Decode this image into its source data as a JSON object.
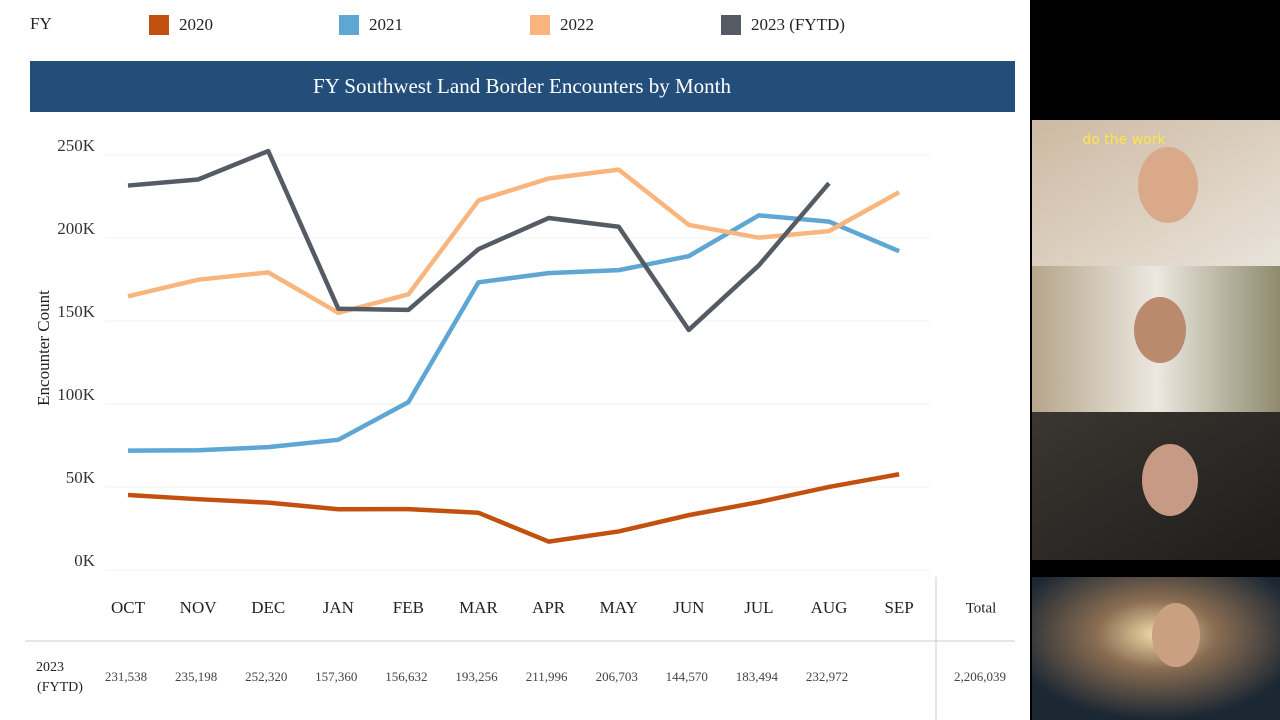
{
  "chart_data": {
    "type": "line",
    "title": "FY Southwest Land Border Encounters by Month",
    "legend_title": "FY",
    "y_label": "Encounter Count",
    "categories": [
      "OCT",
      "NOV",
      "DEC",
      "JAN",
      "FEB",
      "MAR",
      "APR",
      "MAY",
      "JUN",
      "JUL",
      "AUG",
      "SEP"
    ],
    "series": [
      {
        "name": "2020",
        "color": "#c2510f",
        "values": [
          45139,
          42649,
          40565,
          36585,
          36687,
          34460,
          17106,
          23237,
          33049,
          40929,
          50014,
          57674
        ]
      },
      {
        "name": "2021",
        "color": "#5ea6d3",
        "values": [
          71929,
          72113,
          73994,
          78414,
          101099,
          173277,
          178795,
          180597,
          189034,
          213593,
          209840,
          192001
        ]
      },
      {
        "name": "2022",
        "color": "#f8b67e",
        "values": [
          164837,
          174845,
          179253,
          154874,
          166010,
          222574,
          235785,
          241136,
          207834,
          200162,
          204087,
          227547
        ]
      },
      {
        "name": "2023 (FYTD)",
        "color": "#555b64",
        "values": [
          231538,
          235198,
          252320,
          157360,
          156632,
          193256,
          211996,
          206703,
          144570,
          183494,
          232972,
          null
        ]
      }
    ],
    "ylim": [
      0,
      265000
    ],
    "yticks": [
      {
        "value": 0,
        "label": "0K"
      },
      {
        "value": 50000,
        "label": "50K"
      },
      {
        "value": 100000,
        "label": "100K"
      },
      {
        "value": 150000,
        "label": "150K"
      },
      {
        "value": 200000,
        "label": "200K"
      },
      {
        "value": 250000,
        "label": "250K"
      }
    ],
    "grid": true
  },
  "table": {
    "total_header": "Total",
    "row_label": [
      "2023",
      "(FYTD)"
    ],
    "cells": [
      "231,538",
      "235,198",
      "252,320",
      "157,360",
      "156,632",
      "193,256",
      "211,996",
      "206,703",
      "144,570",
      "183,494",
      "232,972"
    ],
    "total": "2,206,039"
  },
  "video": {
    "sign": "do the work"
  }
}
